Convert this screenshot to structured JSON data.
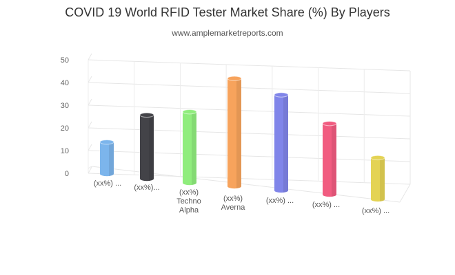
{
  "chart_data": {
    "type": "bar",
    "title": "COVID 19 World RFID Tester Market Share (%) By Players",
    "subtitle": "www.amplemarketreports.com",
    "categories": [
      "(xx%) ...",
      "(xx%)...",
      "(xx%) Techno Alpha",
      "(xx%) Averna",
      "(xx%) ...",
      "(xx%) ...",
      "(xx%) ..."
    ],
    "category_lines": [
      [
        "(xx%) ..."
      ],
      [
        "(xx%)..."
      ],
      [
        "(xx%)",
        "Techno",
        "Alpha"
      ],
      [
        "(xx%)",
        "Averna"
      ],
      [
        "(xx%) ..."
      ],
      [
        "(xx%) ..."
      ],
      [
        "(xx%) ..."
      ]
    ],
    "values": [
      13,
      26,
      29,
      44,
      39,
      29,
      17
    ],
    "colors": [
      "#7cb5ec",
      "#434348",
      "#90ed7d",
      "#f7a35c",
      "#8085e9",
      "#f15c80",
      "#e4d354"
    ],
    "yticks": [
      0,
      10,
      20,
      30,
      40,
      50
    ],
    "ylim": [
      0,
      50
    ],
    "xlabel": "",
    "ylabel": "",
    "grid": true,
    "style": "3d-cylinder"
  }
}
